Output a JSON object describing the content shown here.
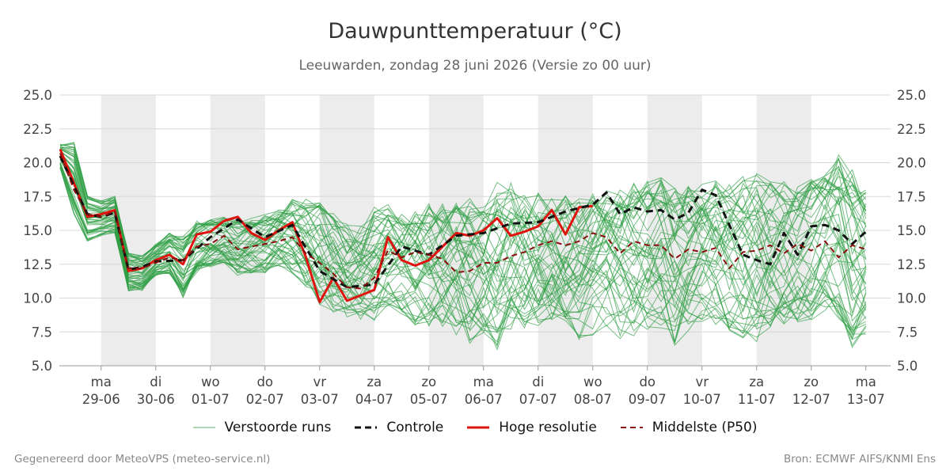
{
  "header": {
    "title": "Dauwpunttemperatuur (°C)",
    "subtitle": "Leeuwarden, zondag 28 juni 2026 (Versie zo 00 uur)"
  },
  "footer": {
    "left": "Gegenereerd door MeteoVPS (meteo-service.nl)",
    "right": "Bron: ECMWF AIFS/KNMI Ens"
  },
  "legend": [
    {
      "label": "Verstoorde runs",
      "color": "#2e9e44",
      "style": "thin-solid"
    },
    {
      "label": "Controle",
      "color": "#111111",
      "style": "dashed"
    },
    {
      "label": "Hoge resolutie",
      "color": "#e0140f",
      "style": "solid"
    },
    {
      "label": "Middelste (P50)",
      "color": "#8b0f0f",
      "style": "dashed"
    }
  ],
  "chart_data": {
    "type": "line",
    "title": "Dauwpunttemperatuur (°C)",
    "ylim": [
      5.0,
      25.0
    ],
    "yticks": [
      "5.0",
      "7.5",
      "10.0",
      "12.5",
      "15.0",
      "17.5",
      "20.0",
      "22.5",
      "25.0"
    ],
    "xlim_days": [
      -0.75,
      14
    ],
    "x_unit": "days since 29-06 00h",
    "xticks": [
      {
        "day": "ma",
        "date": "29-06"
      },
      {
        "day": "di",
        "date": "30-06"
      },
      {
        "day": "wo",
        "date": "01-07"
      },
      {
        "day": "do",
        "date": "02-07"
      },
      {
        "day": "vr",
        "date": "03-07"
      },
      {
        "day": "za",
        "date": "04-07"
      },
      {
        "day": "zo",
        "date": "05-07"
      },
      {
        "day": "ma",
        "date": "06-07"
      },
      {
        "day": "di",
        "date": "07-07"
      },
      {
        "day": "wo",
        "date": "08-07"
      },
      {
        "day": "do",
        "date": "09-07"
      },
      {
        "day": "vr",
        "date": "10-07"
      },
      {
        "day": "za",
        "date": "11-07"
      },
      {
        "day": "zo",
        "date": "12-07"
      },
      {
        "day": "ma",
        "date": "13-07"
      }
    ],
    "shaded_days": [
      0,
      2,
      4,
      6,
      8,
      10,
      12
    ],
    "grid": true,
    "legend_position": "bottom",
    "series": [
      {
        "name": "Hoge resolutie",
        "color": "#e0140f",
        "x": [
          -0.75,
          -0.5,
          -0.25,
          0.0,
          0.25,
          0.5,
          0.75,
          1.0,
          1.25,
          1.5,
          1.75,
          2.0,
          2.25,
          2.5,
          2.75,
          3.0,
          3.25,
          3.5,
          3.75,
          4.0,
          4.25,
          4.5,
          4.75,
          5.0,
          5.25,
          5.5,
          5.75,
          6.0,
          6.25,
          6.5,
          6.75,
          7.0,
          7.25,
          7.5,
          7.75,
          8.0,
          8.25,
          8.5,
          8.75,
          9.0
        ],
        "values": [
          21.0,
          18.5,
          16.0,
          16.2,
          16.5,
          12.0,
          12.2,
          12.8,
          13.2,
          12.5,
          14.7,
          14.9,
          15.7,
          16.0,
          14.8,
          14.3,
          15.0,
          15.6,
          13.0,
          9.7,
          11.5,
          9.8,
          10.2,
          10.6,
          14.5,
          12.8,
          12.4,
          12.8,
          13.8,
          14.8,
          14.6,
          15.0,
          15.9,
          14.6,
          14.9,
          15.3,
          16.5,
          14.7,
          16.7,
          16.8
        ]
      },
      {
        "name": "Controle",
        "color": "#111111",
        "x": [
          -0.75,
          -0.5,
          -0.25,
          0.0,
          0.25,
          0.5,
          0.75,
          1.0,
          1.5,
          2.0,
          2.5,
          3.0,
          3.5,
          4.0,
          4.5,
          5.0,
          5.5,
          6.0,
          6.5,
          7.0,
          7.5,
          8.0,
          8.5,
          9.0,
          9.25,
          9.5,
          9.75,
          10.0,
          10.25,
          10.5,
          10.75,
          11.0,
          11.25,
          11.5,
          11.75,
          12.0,
          12.25,
          12.5,
          12.75,
          13.0,
          13.25,
          13.5,
          13.75,
          14.0
        ],
        "values": [
          20.5,
          18.3,
          16.2,
          16.0,
          16.3,
          12.1,
          12.3,
          12.7,
          12.8,
          14.5,
          15.8,
          14.5,
          15.4,
          12.0,
          10.8,
          11.0,
          13.8,
          13.2,
          14.6,
          14.8,
          15.5,
          15.6,
          16.4,
          16.9,
          17.8,
          16.2,
          16.7,
          16.4,
          16.5,
          15.8,
          16.3,
          18.0,
          17.6,
          15.4,
          13.2,
          12.8,
          12.5,
          14.8,
          13.2,
          15.3,
          15.4,
          15.0,
          14.0,
          14.9
        ]
      },
      {
        "name": "Middelste (P50)",
        "color": "#8b0f0f",
        "x": [
          -0.75,
          -0.5,
          -0.25,
          0.0,
          0.25,
          0.5,
          0.75,
          1.0,
          1.25,
          1.5,
          1.75,
          2.0,
          2.25,
          2.5,
          2.75,
          3.0,
          3.25,
          3.5,
          3.75,
          4.0,
          4.25,
          4.5,
          4.75,
          5.0,
          5.25,
          5.5,
          5.75,
          6.0,
          6.25,
          6.5,
          6.75,
          7.0,
          7.25,
          7.5,
          7.75,
          8.0,
          8.25,
          8.5,
          8.75,
          9.0,
          9.25,
          9.5,
          9.75,
          10.0,
          10.25,
          10.5,
          10.75,
          11.0,
          11.25,
          11.5,
          11.75,
          12.0,
          12.25,
          12.5,
          12.75,
          13.0,
          13.25,
          13.5,
          13.75,
          14.0
        ],
        "values": [
          20.7,
          18.0,
          16.2,
          16.0,
          16.4,
          12.2,
          12.2,
          12.6,
          13.0,
          12.8,
          13.8,
          14.0,
          14.6,
          13.6,
          13.8,
          14.0,
          14.2,
          14.5,
          13.3,
          12.6,
          11.8,
          10.8,
          10.7,
          11.5,
          13.5,
          13.0,
          13.4,
          13.2,
          12.9,
          11.9,
          12.0,
          12.6,
          12.6,
          13.1,
          13.4,
          13.9,
          14.2,
          13.9,
          14.2,
          14.8,
          14.5,
          13.3,
          14.2,
          13.9,
          13.9,
          12.9,
          13.6,
          13.4,
          13.7,
          12.2,
          13.4,
          13.5,
          13.9,
          13.3,
          14.0,
          13.5,
          14.2,
          13.0,
          13.9,
          13.6
        ]
      }
    ],
    "ensemble": {
      "name": "Verstoorde runs",
      "color": "#2e9e44",
      "x_start": -0.75,
      "x_step": 0.25,
      "members": 50,
      "min": [
        19.6,
        16.2,
        14.2,
        14.6,
        14.8,
        10.5,
        10.5,
        11.6,
        11.8,
        10.0,
        11.8,
        12.2,
        12.4,
        11.6,
        11.8,
        11.8,
        12.2,
        11.8,
        10.5,
        9.4,
        8.4,
        8.2,
        8.4,
        8.2,
        9.2,
        8.8,
        8.0,
        7.6,
        7.6,
        7.2,
        6.4,
        6.8,
        6.2,
        7.4,
        7.8,
        7.8,
        7.4,
        7.2,
        6.8,
        7.2,
        7.8,
        7.0,
        7.2,
        7.4,
        7.6,
        6.4,
        7.6,
        7.4,
        7.8,
        7.2,
        6.8,
        6.6,
        7.6,
        8.0,
        8.2,
        8.0,
        8.8,
        8.4,
        5.8,
        6.8
      ],
      "max": [
        21.4,
        21.6,
        17.6,
        17.2,
        17.6,
        13.4,
        13.2,
        14.0,
        14.8,
        14.6,
        15.8,
        15.8,
        16.0,
        15.8,
        16.0,
        16.2,
        16.6,
        17.4,
        17.4,
        17.2,
        16.4,
        15.6,
        15.4,
        16.8,
        17.0,
        16.2,
        16.6,
        17.0,
        17.0,
        17.2,
        17.4,
        17.4,
        18.6,
        18.6,
        18.0,
        17.8,
        17.6,
        17.6,
        18.0,
        17.8,
        18.2,
        18.0,
        18.6,
        18.8,
        19.0,
        18.2,
        18.4,
        18.8,
        18.8,
        18.4,
        19.0,
        19.4,
        18.6,
        18.8,
        18.4,
        18.8,
        19.2,
        20.6,
        19.6,
        18.0
      ]
    }
  }
}
